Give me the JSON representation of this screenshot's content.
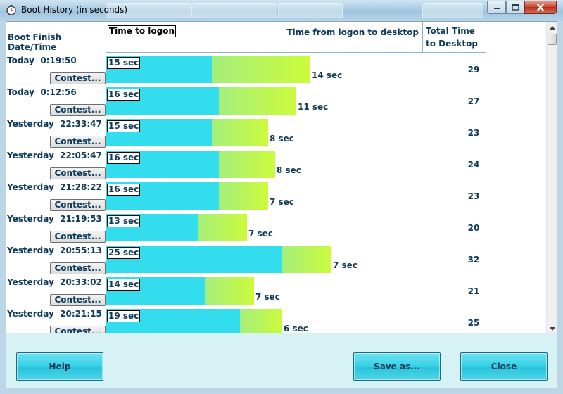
{
  "window": {
    "title": "Boot History (in seconds)",
    "icon": "stopwatch-icon",
    "controls": [
      "minimize-icon",
      "maximize-icon",
      "close-icon"
    ]
  },
  "header": {
    "date_col": "Boot Finish Date/Time",
    "logon_col": "Time to logon",
    "desktop_col": "Time from logon to desktop",
    "total_col": "Total Time to Desktop"
  },
  "contest_label": "Contest...",
  "rows": [
    {
      "date": "Today  0:19:50",
      "contest": "Contest...",
      "logon_label": "15 sec",
      "desktop_label": "14 sec",
      "total": "29",
      "logon": 15,
      "desktop": 14
    },
    {
      "date": "Today  0:12:56",
      "contest": "Contest...",
      "logon_label": "16 sec",
      "desktop_label": "11 sec",
      "total": "27",
      "logon": 16,
      "desktop": 11
    },
    {
      "date": "Yesterday  22:33:47",
      "contest": "Contest...",
      "logon_label": "15 sec",
      "desktop_label": "8 sec",
      "total": "23",
      "logon": 15,
      "desktop": 8
    },
    {
      "date": "Yesterday  22:05:47",
      "contest": "Contest...",
      "logon_label": "16 sec",
      "desktop_label": "8 sec",
      "total": "24",
      "logon": 16,
      "desktop": 8
    },
    {
      "date": "Yesterday  21:28:22",
      "contest": "Contest...",
      "logon_label": "16 sec",
      "desktop_label": "7 sec",
      "total": "23",
      "logon": 16,
      "desktop": 7
    },
    {
      "date": "Yesterday  21:19:53",
      "contest": "Contest...",
      "logon_label": "13 sec",
      "desktop_label": "7 sec",
      "total": "20",
      "logon": 13,
      "desktop": 7
    },
    {
      "date": "Yesterday  20:55:13",
      "contest": "Contest...",
      "logon_label": "25 sec",
      "desktop_label": "7 sec",
      "total": "32",
      "logon": 25,
      "desktop": 7
    },
    {
      "date": "Yesterday  20:33:02",
      "contest": "Contest...",
      "logon_label": "14 sec",
      "desktop_label": "7 sec",
      "total": "21",
      "logon": 14,
      "desktop": 7
    },
    {
      "date": "Yesterday  20:21:15",
      "contest": "Contest...",
      "logon_label": "19 sec",
      "desktop_label": "6 sec",
      "total": "25",
      "logon": 19,
      "desktop": 6
    }
  ],
  "footer": {
    "help": "Help",
    "save_as": "Save as...",
    "close": "Close"
  },
  "colors": {
    "logon_bar": "#33dded",
    "desktop_bar_start": "#a4ee7c",
    "desktop_bar_end": "#ccfb3a",
    "text": "#0e3a5a",
    "footer_bg": "#d6f2f4"
  }
}
